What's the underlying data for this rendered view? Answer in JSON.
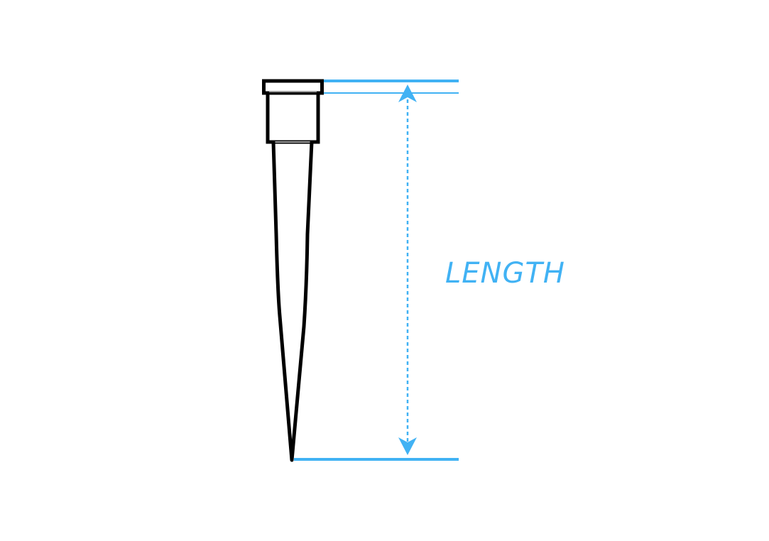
{
  "diagram": {
    "dimension_label": "LENGTH",
    "colors": {
      "outline": "#000000",
      "inner_line": "#9e9e9e",
      "dimension": "#41b2f4",
      "background": "#ffffff"
    }
  }
}
